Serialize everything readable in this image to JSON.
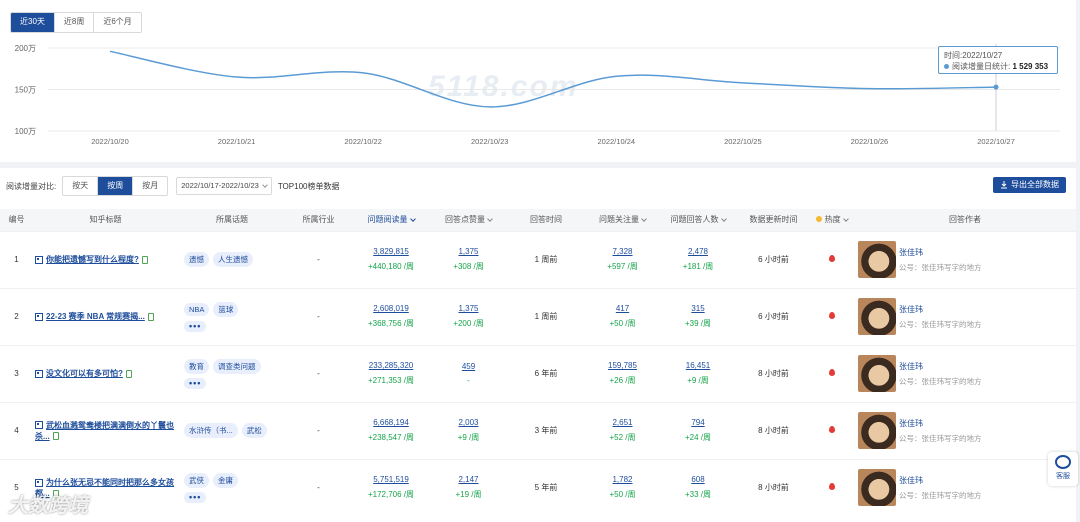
{
  "range_tabs": [
    "近30天",
    "近8周",
    "近6个月"
  ],
  "chart_data": {
    "type": "line",
    "categories": [
      "2022/10/20",
      "2022/10/21",
      "2022/10/22",
      "2022/10/23",
      "2022/10/24",
      "2022/10/25",
      "2022/10/26",
      "2022/10/27"
    ],
    "values": [
      1960000,
      1650000,
      1700000,
      1290000,
      1660000,
      1580000,
      1510000,
      1529353
    ],
    "y_ticks": [
      "200万",
      "150万",
      "100万"
    ],
    "y_tick_values": [
      2000000,
      1500000,
      1000000
    ],
    "ylim": [
      1000000,
      2000000
    ],
    "color": "#5b9bd5",
    "grid": true
  },
  "watermark": "5118.com",
  "tooltip": {
    "time_text": "时间:2022/10/27",
    "series_label": "阅读增量日统计:",
    "value_text": "1 529 353"
  },
  "filter": {
    "label": "阅读增量对比:",
    "segments": [
      "按天",
      "按周",
      "按月"
    ],
    "date_range": "2022/10/17-2022/10/23",
    "top_label": "TOP100榜单数据",
    "export_label": "导出全部数据"
  },
  "columns": [
    "编号",
    "知乎标题",
    "所属话题",
    "所属行业",
    "问题阅读量",
    "回答点赞量",
    "回答时间",
    "问题关注量",
    "问题回答人数",
    "数据更新时间",
    "热度",
    "回答作者"
  ],
  "rows": [
    {
      "no": "1",
      "title": "你能把遗憾写到什么程度?",
      "tags": [
        "遗憾",
        "人生遗憾"
      ],
      "more": false,
      "industry": "-",
      "reads": "3,829,815",
      "reads_delta": "+440,180 /周",
      "likes": "1,375",
      "likes_delta": "+308 /周",
      "time": "1 周前",
      "follows": "7,328",
      "follows_delta": "+597 /周",
      "answers": "2,478",
      "answers_delta": "+181 /周",
      "updated": "6 小时前",
      "author": "张佳玮",
      "author_org": "公号：张佳玮写字的地方"
    },
    {
      "no": "2",
      "title": "22-23 赛季 NBA 常规赛揭...",
      "tags": [
        "NBA",
        "篮球"
      ],
      "more": true,
      "industry": "-",
      "reads": "2,608,019",
      "reads_delta": "+368,756 /周",
      "likes": "1,375",
      "likes_delta": "+200 /周",
      "time": "1 周前",
      "follows": "417",
      "follows_delta": "+50 /周",
      "answers": "315",
      "answers_delta": "+39 /周",
      "updated": "6 小时前",
      "author": "张佳玮",
      "author_org": "公号：张佳玮写字的地方"
    },
    {
      "no": "3",
      "title": "没文化可以有多可怕?",
      "tags": [
        "教育",
        "调查类问题"
      ],
      "more": true,
      "industry": "-",
      "reads": "233,285,320",
      "reads_delta": "+271,353 /周",
      "likes": "459",
      "likes_delta": "-",
      "time": "6 年前",
      "follows": "159,785",
      "follows_delta": "+26 /周",
      "answers": "16,451",
      "answers_delta": "+9 /周",
      "updated": "8 小时前",
      "author": "张佳玮",
      "author_org": "公号：张佳玮写字的地方"
    },
    {
      "no": "4",
      "title": "武松血溅鸳鸯楼把满满倒水的丫鬟也杀...",
      "tags": [
        "水浒传（书...",
        "武松"
      ],
      "more": false,
      "industry": "-",
      "reads": "6,668,194",
      "reads_delta": "+238,547 /周",
      "likes": "2,003",
      "likes_delta": "+9 /周",
      "time": "3 年前",
      "follows": "2,651",
      "follows_delta": "+52 /周",
      "answers": "794",
      "answers_delta": "+24 /周",
      "updated": "8 小时前",
      "author": "张佳玮",
      "author_org": "公号：张佳玮写字的地方"
    },
    {
      "no": "5",
      "title": "为什么张无忌不能同时把那么多女孩都...",
      "tags": [
        "武侠",
        "金庸"
      ],
      "more": true,
      "industry": "-",
      "reads": "5,751,519",
      "reads_delta": "+172,706 /周",
      "likes": "2,147",
      "likes_delta": "+19 /周",
      "time": "5 年前",
      "follows": "1,782",
      "follows_delta": "+50 /周",
      "answers": "608",
      "answers_delta": "+33 /周",
      "updated": "8 小时前",
      "author": "张佳玮",
      "author_org": "公号：张佳玮写字的地方"
    }
  ],
  "service_label": "客服",
  "brand": "大数跨境"
}
